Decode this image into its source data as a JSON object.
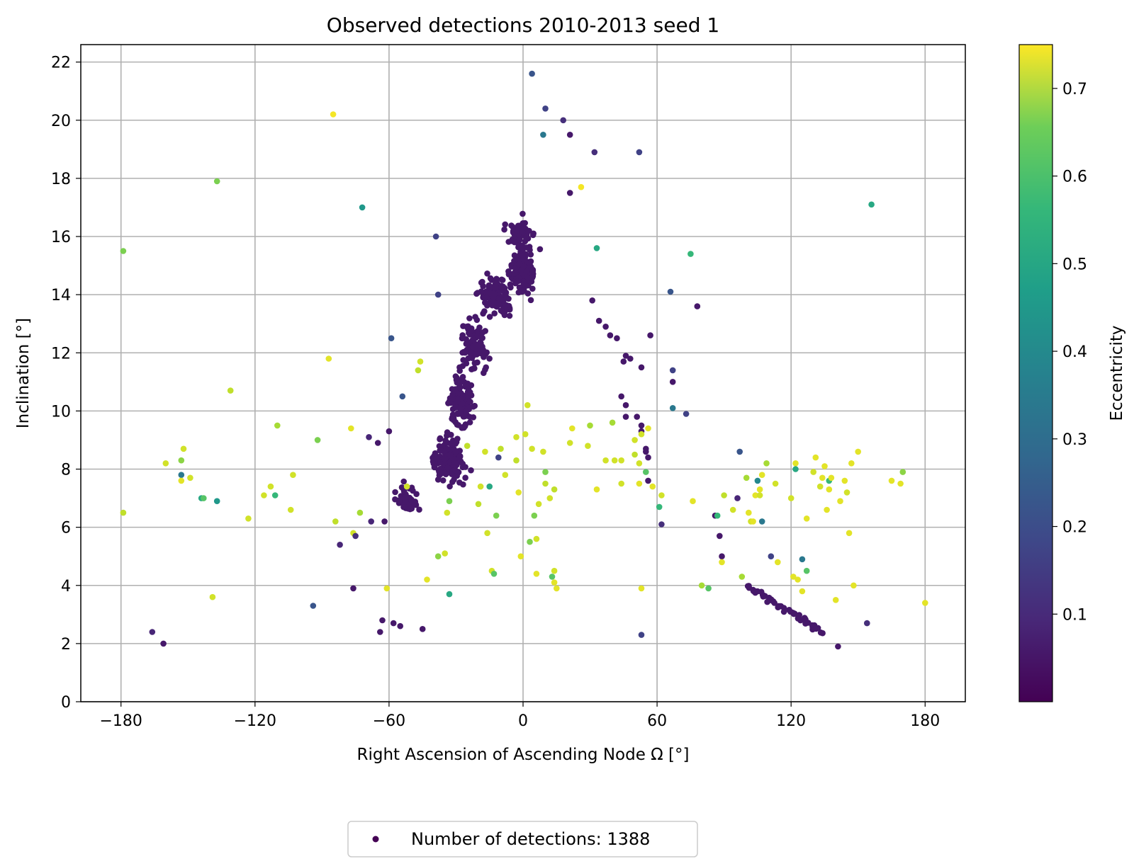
{
  "chart_data": {
    "type": "scatter",
    "title": "Observed detections 2010-2013 seed 1",
    "xlabel": "Right Ascension of Ascending Node Ω [°]",
    "ylabel": "Inclination [°]",
    "xlim": [
      -198,
      198
    ],
    "ylim": [
      0,
      22.6
    ],
    "xticks": [
      -180,
      -120,
      -60,
      0,
      60,
      120,
      180
    ],
    "xtick_labels": [
      "−180",
      "−120",
      "−60",
      "0",
      "60",
      "120",
      "180"
    ],
    "yticks": [
      0,
      2,
      4,
      6,
      8,
      10,
      12,
      14,
      16,
      18,
      20,
      22
    ],
    "ytick_labels": [
      "0",
      "2",
      "4",
      "6",
      "8",
      "10",
      "12",
      "14",
      "16",
      "18",
      "20",
      "22"
    ],
    "grid": true,
    "colorbar": {
      "label": "Eccentricity",
      "range": [
        0.0,
        0.75
      ],
      "ticks": [
        0.1,
        0.2,
        0.3,
        0.4,
        0.5,
        0.6,
        0.7
      ],
      "tick_labels": [
        "0.1",
        "0.2",
        "0.3",
        "0.4",
        "0.5",
        "0.6",
        "0.7"
      ],
      "colormap": "viridis"
    },
    "legend": {
      "placement": "bottom-center, below axes",
      "entries": [
        "Number of detections: 1388"
      ],
      "marker_color": "#440154"
    },
    "points": [
      [
        -179,
        15.5,
        0.6
      ],
      [
        -179,
        6.5,
        0.68
      ],
      [
        -166,
        2.4,
        0.08
      ],
      [
        -161,
        2.0,
        0.05
      ],
      [
        -160,
        8.2,
        0.7
      ],
      [
        -153,
        7.8,
        0.3
      ],
      [
        -153,
        8.3,
        0.62
      ],
      [
        -153,
        7.6,
        0.72
      ],
      [
        -152,
        8.7,
        0.7
      ],
      [
        -149,
        7.7,
        0.7
      ],
      [
        -144,
        7.0,
        0.45
      ],
      [
        -143,
        7.0,
        0.55
      ],
      [
        -137,
        6.9,
        0.4
      ],
      [
        -137,
        17.9,
        0.6
      ],
      [
        -139,
        3.6,
        0.7
      ],
      [
        -131,
        10.7,
        0.68
      ],
      [
        -123,
        6.3,
        0.7
      ],
      [
        -116,
        7.1,
        0.7
      ],
      [
        -113,
        7.4,
        0.7
      ],
      [
        -111,
        7.1,
        0.5
      ],
      [
        -110,
        9.5,
        0.65
      ],
      [
        -104,
        6.6,
        0.7
      ],
      [
        -103,
        7.8,
        0.7
      ],
      [
        -94,
        3.3,
        0.2
      ],
      [
        -92,
        9.0,
        0.6
      ],
      [
        -87,
        11.8,
        0.72
      ],
      [
        -85,
        20.2,
        0.74
      ],
      [
        -84,
        6.2,
        0.68
      ],
      [
        -82,
        5.4,
        0.08
      ],
      [
        -77,
        9.4,
        0.72
      ],
      [
        -76,
        5.8,
        0.7
      ],
      [
        -75,
        5.7,
        0.1
      ],
      [
        -76,
        3.9,
        0.05
      ],
      [
        -73,
        6.5,
        0.65
      ],
      [
        -72,
        17.0,
        0.4
      ],
      [
        -69,
        9.1,
        0.08
      ],
      [
        -68,
        6.2,
        0.08
      ],
      [
        -65,
        8.9,
        0.05
      ],
      [
        -64,
        2.4,
        0.05
      ],
      [
        -63,
        2.8,
        0.05
      ],
      [
        -62,
        6.2,
        0.05
      ],
      [
        -61,
        3.9,
        0.72
      ],
      [
        -60,
        9.3,
        0.05
      ],
      [
        -59,
        12.5,
        0.2
      ],
      [
        -58,
        2.7,
        0.05
      ],
      [
        -55,
        2.6,
        0.05
      ],
      [
        -54,
        10.5,
        0.2
      ],
      [
        -52,
        7.4,
        0.7
      ],
      [
        -45,
        2.5,
        0.05
      ],
      [
        -47,
        11.4,
        0.68
      ],
      [
        -46,
        11.7,
        0.7
      ],
      [
        -43,
        4.2,
        0.72
      ],
      [
        -39,
        16.0,
        0.15
      ],
      [
        -38,
        14.0,
        0.15
      ],
      [
        -38,
        5.0,
        0.62
      ],
      [
        -35,
        5.1,
        0.7
      ],
      [
        -33,
        3.7,
        0.45
      ],
      [
        -33,
        6.9,
        0.6
      ],
      [
        -34,
        6.5,
        0.7
      ],
      [
        -25,
        8.8,
        0.68
      ],
      [
        -20,
        6.8,
        0.68
      ],
      [
        -19,
        7.4,
        0.7
      ],
      [
        -17,
        8.6,
        0.7
      ],
      [
        -16,
        5.8,
        0.7
      ],
      [
        -15,
        7.4,
        0.45
      ],
      [
        -14,
        4.5,
        0.7
      ],
      [
        -13,
        4.4,
        0.55
      ],
      [
        -12,
        6.4,
        0.6
      ],
      [
        -11,
        8.4,
        0.15
      ],
      [
        -10,
        8.7,
        0.68
      ],
      [
        -8,
        7.8,
        0.7
      ],
      [
        -3,
        9.1,
        0.7
      ],
      [
        -3,
        8.3,
        0.68
      ],
      [
        -2,
        7.2,
        0.72
      ],
      [
        -1,
        5.0,
        0.72
      ],
      [
        1,
        9.2,
        0.7
      ],
      [
        2,
        10.2,
        0.7
      ],
      [
        3,
        5.5,
        0.6
      ],
      [
        4,
        8.7,
        0.7
      ],
      [
        5,
        6.4,
        0.6
      ],
      [
        6,
        5.6,
        0.7
      ],
      [
        6,
        4.4,
        0.72
      ],
      [
        7,
        6.8,
        0.7
      ],
      [
        9,
        8.6,
        0.7
      ],
      [
        10,
        7.9,
        0.6
      ],
      [
        10,
        7.5,
        0.68
      ],
      [
        12,
        7.0,
        0.7
      ],
      [
        13,
        4.3,
        0.55
      ],
      [
        14,
        4.5,
        0.7
      ],
      [
        14,
        4.1,
        0.72
      ],
      [
        15,
        3.9,
        0.72
      ],
      [
        14,
        7.3,
        0.68
      ],
      [
        4,
        21.6,
        0.2
      ],
      [
        10,
        20.4,
        0.15
      ],
      [
        9,
        19.5,
        0.3
      ],
      [
        18,
        20.0,
        0.1
      ],
      [
        21,
        19.5,
        0.05
      ],
      [
        26,
        17.7,
        0.74
      ],
      [
        21,
        17.5,
        0.05
      ],
      [
        32,
        18.9,
        0.1
      ],
      [
        52,
        18.9,
        0.15
      ],
      [
        33,
        15.6,
        0.45
      ],
      [
        31,
        13.8,
        0.05
      ],
      [
        34,
        13.1,
        0.05
      ],
      [
        37,
        12.9,
        0.05
      ],
      [
        39,
        12.6,
        0.05
      ],
      [
        42,
        12.5,
        0.05
      ],
      [
        45,
        11.7,
        0.05
      ],
      [
        46,
        11.9,
        0.05
      ],
      [
        48,
        11.8,
        0.05
      ],
      [
        53,
        11.5,
        0.05
      ],
      [
        44,
        10.5,
        0.05
      ],
      [
        46,
        10.2,
        0.05
      ],
      [
        46,
        9.8,
        0.05
      ],
      [
        51,
        9.8,
        0.05
      ],
      [
        53,
        9.5,
        0.05
      ],
      [
        53,
        9.3,
        0.05
      ],
      [
        53,
        9.2,
        0.7
      ],
      [
        56,
        9.4,
        0.72
      ],
      [
        55,
        8.7,
        0.05
      ],
      [
        56,
        8.4,
        0.05
      ],
      [
        55,
        8.6,
        0.05
      ],
      [
        50,
        9.0,
        0.7
      ],
      [
        50,
        8.5,
        0.68
      ],
      [
        52,
        8.2,
        0.7
      ],
      [
        55,
        7.9,
        0.55
      ],
      [
        56,
        7.6,
        0.05
      ],
      [
        58,
        7.4,
        0.72
      ],
      [
        62,
        7.1,
        0.7
      ],
      [
        61,
        6.7,
        0.5
      ],
      [
        62,
        6.1,
        0.1
      ],
      [
        57,
        12.6,
        0.05
      ],
      [
        67,
        11.0,
        0.05
      ],
      [
        67,
        11.4,
        0.15
      ],
      [
        66,
        14.1,
        0.2
      ],
      [
        75,
        15.4,
        0.5
      ],
      [
        78,
        13.6,
        0.05
      ],
      [
        67,
        10.1,
        0.3
      ],
      [
        73,
        9.9,
        0.15
      ],
      [
        40,
        9.6,
        0.65
      ],
      [
        41,
        8.3,
        0.7
      ],
      [
        44,
        8.3,
        0.7
      ],
      [
        44,
        7.5,
        0.7
      ],
      [
        52,
        7.5,
        0.72
      ],
      [
        53,
        3.9,
        0.72
      ],
      [
        53,
        2.3,
        0.15
      ],
      [
        33,
        7.3,
        0.72
      ],
      [
        37,
        8.3,
        0.7
      ],
      [
        29,
        8.8,
        0.7
      ],
      [
        21,
        8.9,
        0.7
      ],
      [
        22,
        9.4,
        0.72
      ],
      [
        30,
        9.5,
        0.65
      ],
      [
        76,
        6.9,
        0.72
      ],
      [
        80,
        4.0,
        0.65
      ],
      [
        83,
        3.9,
        0.55
      ],
      [
        86,
        6.4,
        0.05
      ],
      [
        87,
        6.4,
        0.5
      ],
      [
        88,
        5.7,
        0.05
      ],
      [
        89,
        5.0,
        0.05
      ],
      [
        89,
        4.8,
        0.72
      ],
      [
        90,
        7.1,
        0.68
      ],
      [
        94,
        6.6,
        0.7
      ],
      [
        96,
        7.0,
        0.08
      ],
      [
        97,
        8.6,
        0.2
      ],
      [
        98,
        4.3,
        0.65
      ],
      [
        100,
        7.7,
        0.65
      ],
      [
        101,
        6.5,
        0.72
      ],
      [
        102,
        6.2,
        0.7
      ],
      [
        103,
        6.2,
        0.72
      ],
      [
        104,
        7.1,
        0.72
      ],
      [
        105,
        7.6,
        0.35
      ],
      [
        106,
        7.3,
        0.72
      ],
      [
        106,
        7.1,
        0.7
      ],
      [
        107,
        7.8,
        0.72
      ],
      [
        107,
        6.2,
        0.3
      ],
      [
        109,
        8.2,
        0.65
      ],
      [
        111,
        5.0,
        0.15
      ],
      [
        113,
        7.5,
        0.7
      ],
      [
        114,
        4.8,
        0.72
      ],
      [
        120,
        7.0,
        0.7
      ],
      [
        122,
        8.2,
        0.72
      ],
      [
        122,
        8.0,
        0.45
      ],
      [
        121,
        4.3,
        0.72
      ],
      [
        123,
        4.2,
        0.72
      ],
      [
        125,
        3.8,
        0.72
      ],
      [
        125,
        4.9,
        0.3
      ],
      [
        127,
        4.5,
        0.55
      ],
      [
        127,
        6.3,
        0.72
      ],
      [
        130,
        7.9,
        0.7
      ],
      [
        131,
        8.4,
        0.72
      ],
      [
        133,
        7.4,
        0.7
      ],
      [
        134,
        7.7,
        0.72
      ],
      [
        135,
        8.1,
        0.72
      ],
      [
        136,
        6.6,
        0.72
      ],
      [
        137,
        7.3,
        0.72
      ],
      [
        137,
        7.6,
        0.5
      ],
      [
        138,
        7.7,
        0.72
      ],
      [
        140,
        3.5,
        0.72
      ],
      [
        142,
        6.9,
        0.72
      ],
      [
        144,
        7.6,
        0.72
      ],
      [
        145,
        7.2,
        0.7
      ],
      [
        146,
        5.8,
        0.72
      ],
      [
        147,
        8.2,
        0.72
      ],
      [
        148,
        4.0,
        0.72
      ],
      [
        150,
        8.6,
        0.72
      ],
      [
        154,
        2.7,
        0.1
      ],
      [
        156,
        17.1,
        0.45
      ],
      [
        165,
        7.6,
        0.72
      ],
      [
        169,
        7.5,
        0.72
      ],
      [
        170,
        7.9,
        0.62
      ],
      [
        180,
        3.4,
        0.72
      ],
      [
        141,
        1.9,
        0.05
      ]
    ],
    "dense_clusters": [
      {
        "description_x": [
          -47,
          -9
        ],
        "x_center": -33,
        "y_center": 8.3,
        "spread_x": 9,
        "spread_y": 0.9,
        "count": 150,
        "ecc": 0.05
      },
      {
        "x_center": -28,
        "y_center": 10.3,
        "spread_x": 8,
        "spread_y": 1.2,
        "count": 110,
        "ecc": 0.05
      },
      {
        "x_center": -22,
        "y_center": 12.3,
        "spread_x": 7,
        "spread_y": 1.0,
        "count": 90,
        "ecc": 0.05
      },
      {
        "x_center": -12,
        "y_center": 14.0,
        "spread_x": 10,
        "spread_y": 0.8,
        "count": 120,
        "ecc": 0.05
      },
      {
        "x_center": 0,
        "y_center": 14.8,
        "spread_x": 6,
        "spread_y": 0.8,
        "count": 170,
        "ecc": 0.05
      },
      {
        "x_center": -1,
        "y_center": 16.0,
        "spread_x": 7,
        "spread_y": 0.8,
        "count": 60,
        "ecc": 0.05
      },
      {
        "x_center": -52,
        "y_center": 7.0,
        "spread_x": 6,
        "spread_y": 0.7,
        "count": 45,
        "ecc": 0.05
      }
    ],
    "tail_curve": {
      "from": [
        100,
        4.0
      ],
      "to": [
        134,
        2.4
      ],
      "count": 45,
      "ecc": 0.05
    }
  }
}
